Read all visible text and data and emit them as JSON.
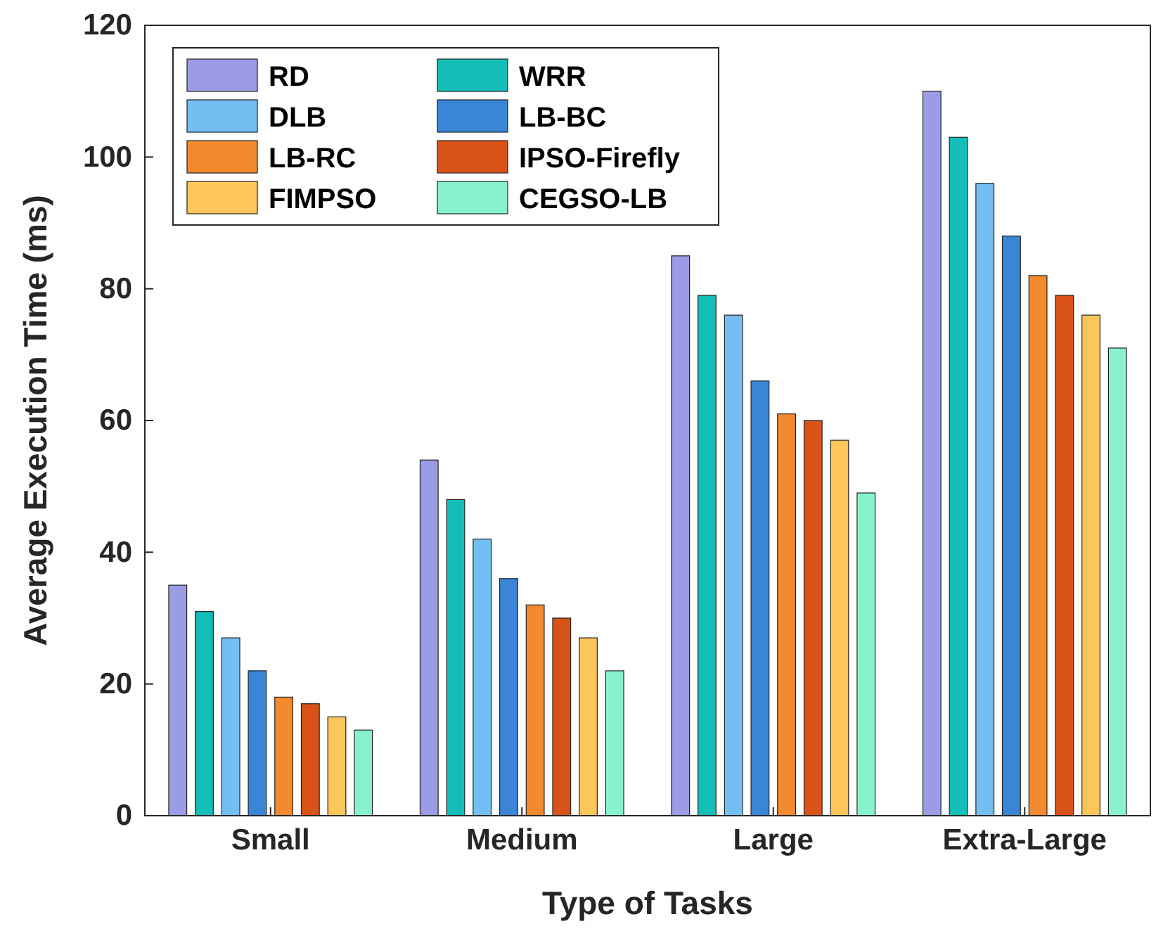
{
  "chart_data": {
    "type": "bar",
    "xlabel": "Type of Tasks",
    "ylabel": "Average Execution Time (ms)",
    "categories": [
      "Small",
      "Medium",
      "Large",
      "Extra-Large"
    ],
    "series": [
      {
        "name": "RD",
        "color": "#9b9be6",
        "values": [
          35,
          54,
          85,
          110
        ]
      },
      {
        "name": "WRR",
        "color": "#13bdb8",
        "values": [
          31,
          48,
          79,
          103
        ]
      },
      {
        "name": "DLB",
        "color": "#74bff2",
        "values": [
          27,
          42,
          76,
          96
        ]
      },
      {
        "name": "LB-BC",
        "color": "#3a85d6",
        "values": [
          22,
          36,
          66,
          88
        ]
      },
      {
        "name": "LB-RC",
        "color": "#f48a2e",
        "values": [
          18,
          32,
          61,
          82
        ]
      },
      {
        "name": "IPSO-Firefly",
        "color": "#d95319",
        "values": [
          17,
          30,
          60,
          79
        ]
      },
      {
        "name": "FIMPSO",
        "color": "#fdc65a",
        "values": [
          15,
          27,
          57,
          76
        ]
      },
      {
        "name": "CEGSO-LB",
        "color": "#88f2cc",
        "values": [
          13,
          22,
          49,
          71
        ]
      }
    ],
    "ylim": [
      0,
      120
    ],
    "yticks": [
      0,
      20,
      40,
      60,
      80,
      100,
      120
    ],
    "legend": "top left"
  }
}
